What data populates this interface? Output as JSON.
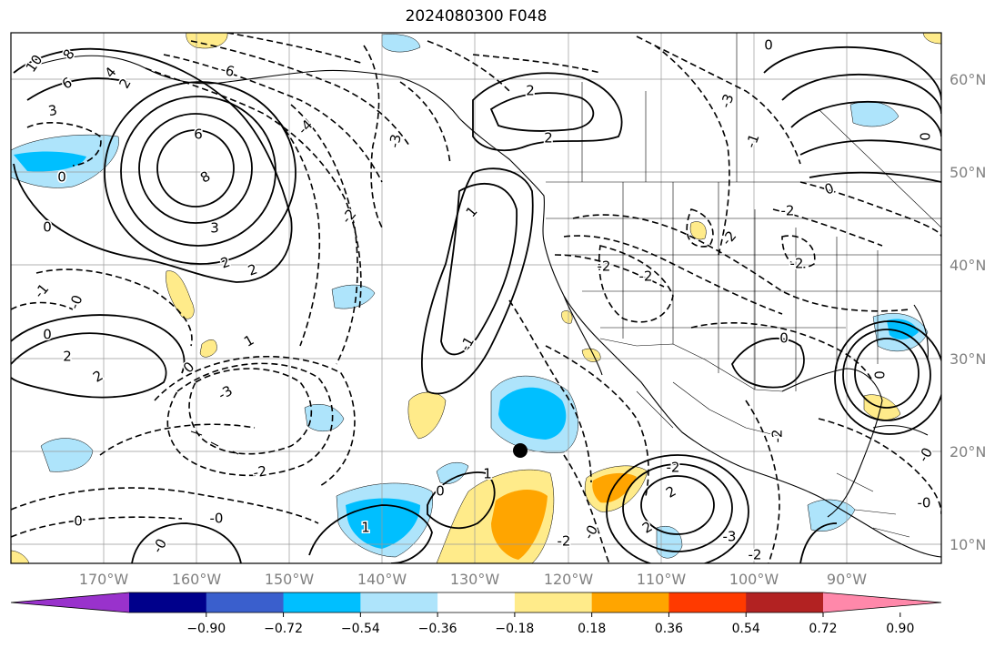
{
  "title": "2024080300 F048",
  "lat_labels": [
    "60°N",
    "50°N",
    "40°N",
    "30°N",
    "20°N",
    "10°N"
  ],
  "lon_labels": [
    "170°W",
    "160°W",
    "150°W",
    "140°W",
    "130°W",
    "120°W",
    "110°W",
    "100°W",
    "90°W"
  ],
  "colorbar": {
    "ticks": [
      "−0.90",
      "−0.72",
      "−0.54",
      "−0.36",
      "−0.18",
      "0.18",
      "0.36",
      "0.54",
      "0.72",
      "0.90"
    ],
    "colors": [
      "#9932cc",
      "#00008b",
      "#3a5fcd",
      "#00bfff",
      "#aee4fb",
      "#ffffff",
      "#ffeb8a",
      "#ffa500",
      "#ff3a00",
      "#b22222",
      "#ff88aa"
    ]
  },
  "contour_labels": [
    "10",
    "8",
    "6",
    "4",
    "3",
    "2",
    "6",
    "8",
    "3",
    "2",
    "2",
    "0",
    "0",
    "-1",
    "0",
    "2",
    "2",
    "1",
    "0",
    "-0",
    "-3",
    "-2",
    "-2",
    "-3",
    "-4",
    "-6",
    "2",
    "2",
    "1",
    "-1",
    "-2",
    "-2",
    "-2",
    "-3",
    "0",
    "-1",
    "-2",
    "-2",
    "0",
    "0",
    "0",
    "-2",
    "-3",
    "-2",
    "-2",
    "2",
    "2",
    "1",
    "1",
    "0",
    "-0",
    "-2",
    "0",
    "-0",
    "-0",
    "-0",
    "-0",
    "0"
  ],
  "marker": "storm-center-dot"
}
